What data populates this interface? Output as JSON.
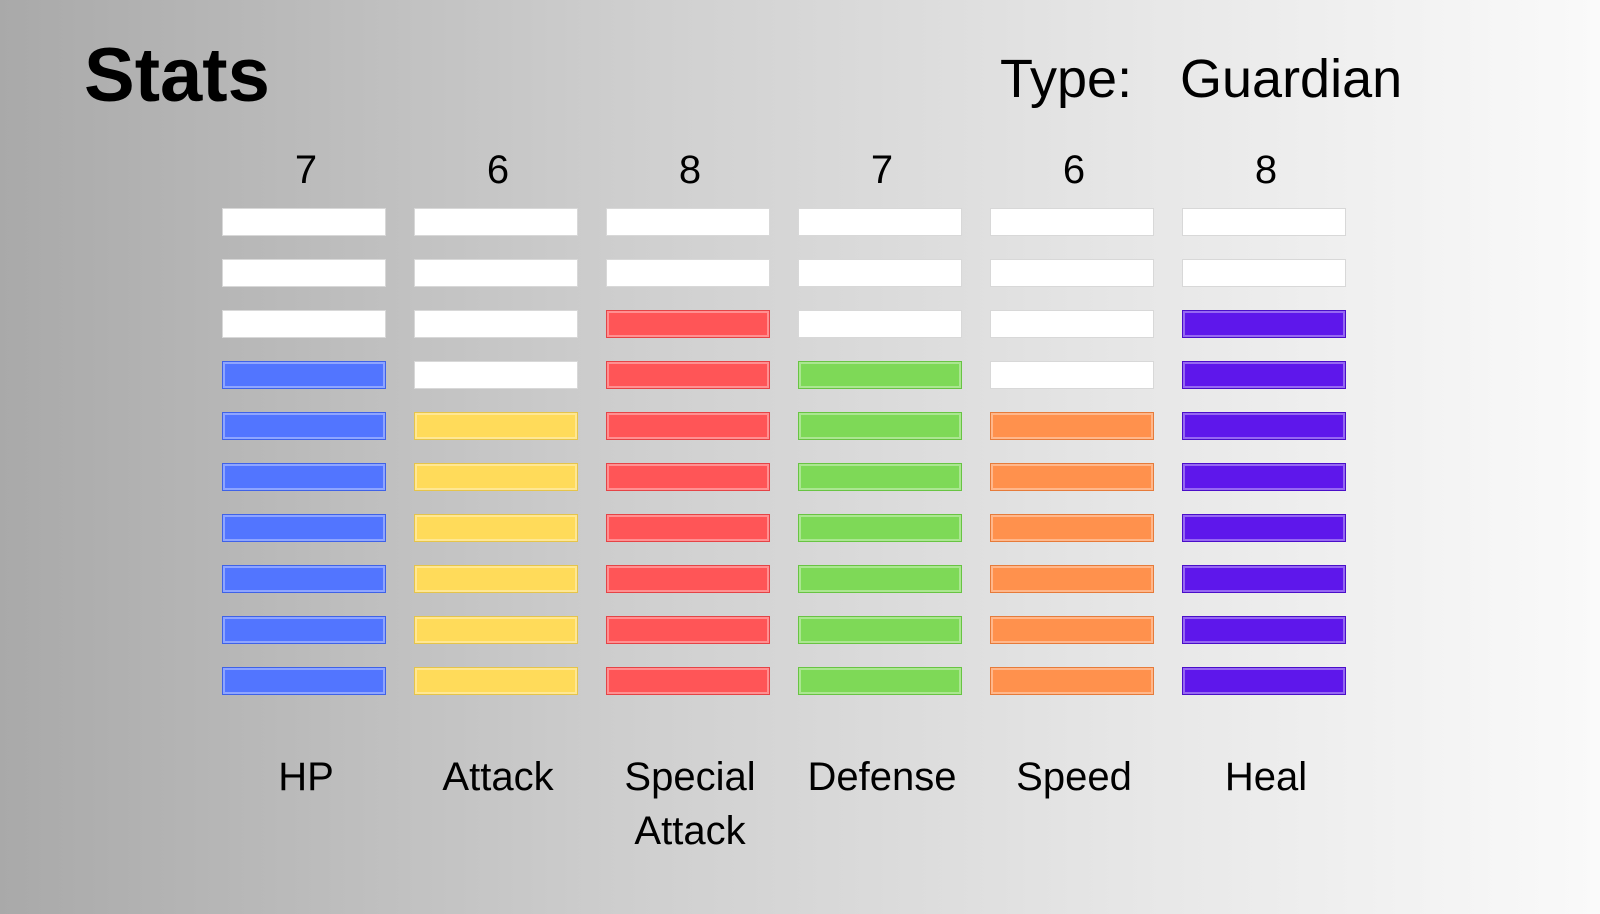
{
  "header": {
    "title": "Stats",
    "type_label": "Type:",
    "type_value": "Guardian"
  },
  "max_level": 10,
  "stats": [
    {
      "label": "HP",
      "value": "7",
      "color": "#5275ff",
      "border": "#3f62e8"
    },
    {
      "label": "Attack",
      "value": "6",
      "color": "#ffdb5a",
      "border": "#e5c44a"
    },
    {
      "label": "Special Attack",
      "value": "8",
      "color": "#ff5557",
      "border": "#e54346"
    },
    {
      "label": "Defense",
      "value": "7",
      "color": "#7ed957",
      "border": "#68c443"
    },
    {
      "label": "Speed",
      "value": "6",
      "color": "#ff914d",
      "border": "#e67b3a"
    },
    {
      "label": "Heal",
      "value": "8",
      "color": "#5e17eb",
      "border": "#4a0ec9"
    }
  ],
  "empty_color": "#ffffff"
}
